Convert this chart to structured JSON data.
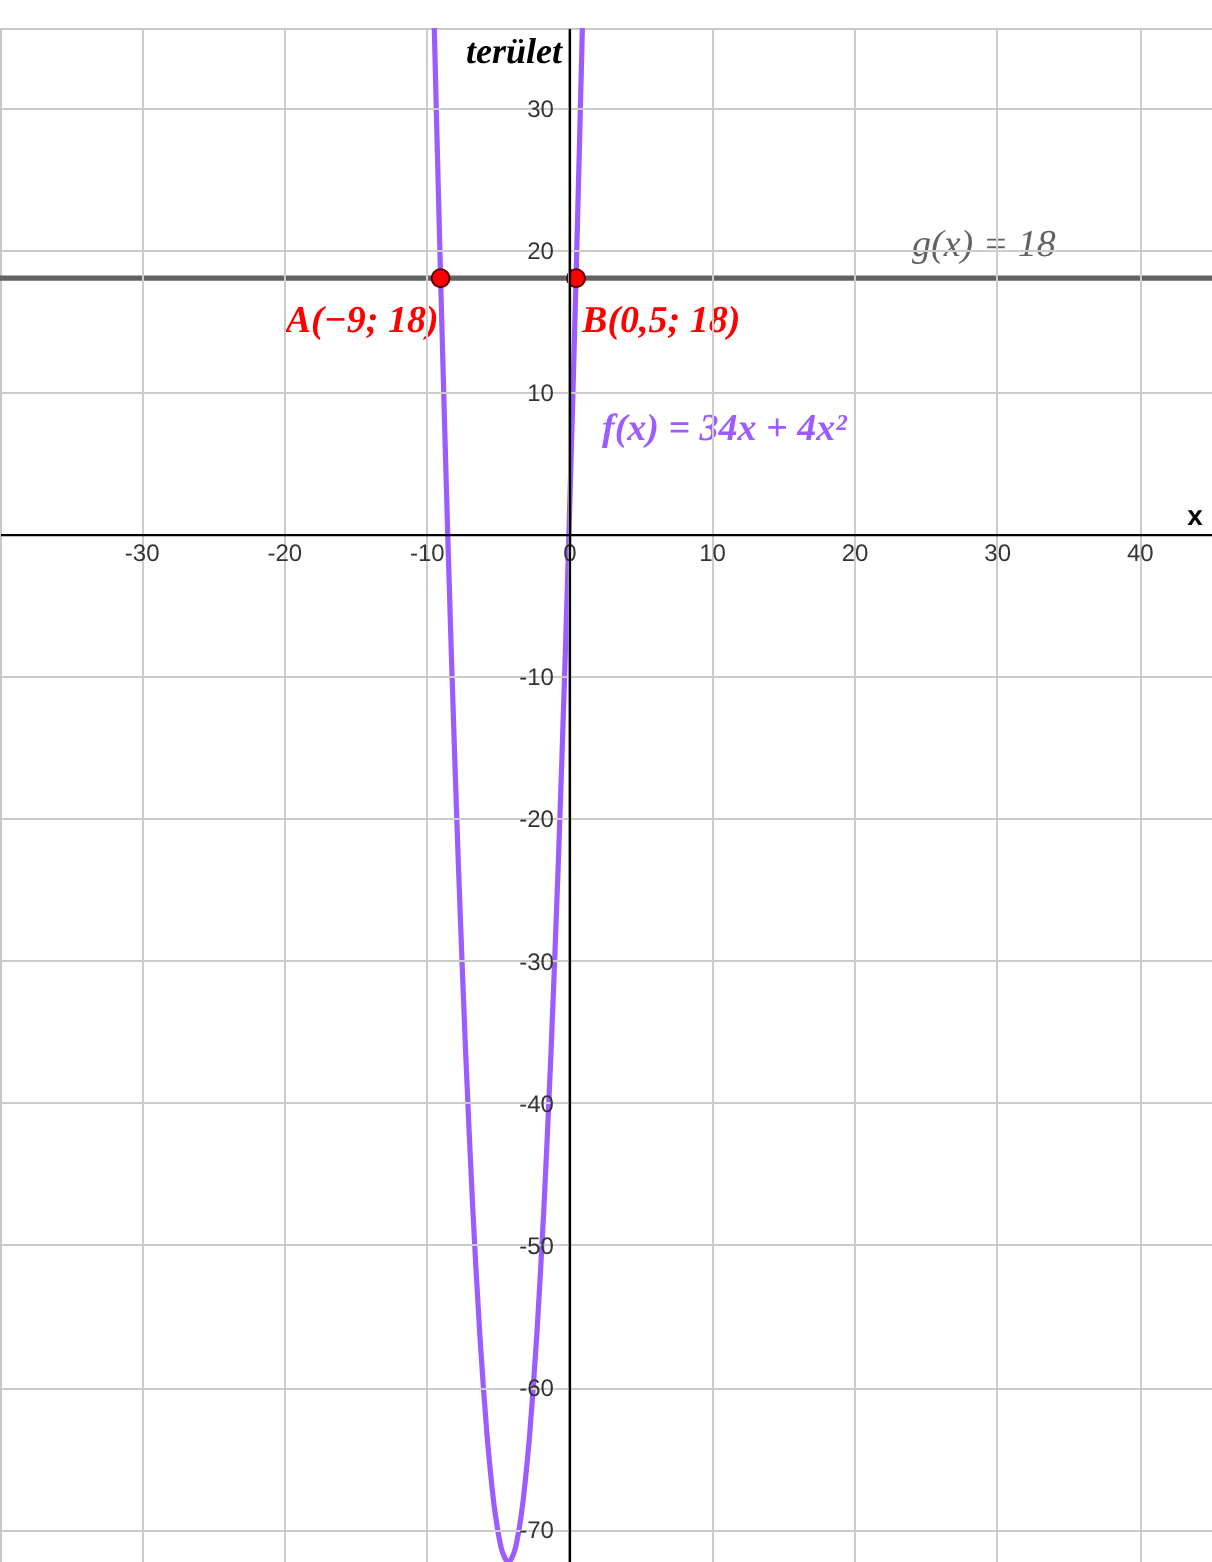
{
  "chart_data": {
    "type": "line",
    "xlabel": "x",
    "ylabel": "terület",
    "xlim": [
      -39.9,
      45.1
    ],
    "ylim": [
      -72.3,
      35.6
    ],
    "xticks": [
      -30,
      -20,
      -10,
      0,
      10,
      20,
      30,
      40
    ],
    "yticks": [
      -70,
      -60,
      -50,
      -40,
      -30,
      -20,
      -10,
      10,
      20,
      30
    ],
    "grid": true,
    "series": [
      {
        "name": "f(x) = 34x + 4x²",
        "color": "#9c5cff",
        "x": [
          -9.44,
          -9.25,
          -9,
          -8.75,
          -8.5,
          -8.25,
          -8,
          -7.75,
          -7.5,
          -7.25,
          -7,
          -6.75,
          -6.5,
          -6.25,
          -6,
          -5.75,
          -5.5,
          -5.25,
          -5,
          -4.75,
          -4.5,
          -4.25,
          -4,
          -3.75,
          -3.5,
          -3.25,
          -3,
          -2.75,
          -2.5,
          -2.25,
          -2,
          -1.75,
          -1.5,
          -1.25,
          -1,
          -0.75,
          -0.5,
          -0.25,
          0,
          0.25,
          0.5,
          0.75,
          0.94
        ],
        "values": [
          35.5,
          27.8,
          18,
          8.8,
          0,
          -8.3,
          -16,
          -23.3,
          -30,
          -36.3,
          -42,
          -47.3,
          -52,
          -56.3,
          -60,
          -63.3,
          -66,
          -68.3,
          -70,
          -71.3,
          -72,
          -72.3,
          -72,
          -71.3,
          -70,
          -68.3,
          -66,
          -63.3,
          -60,
          -56.3,
          -52,
          -47.3,
          -42,
          -36.3,
          -30,
          -23.3,
          -16,
          -8.3,
          0,
          8.8,
          18,
          27.8,
          35.5
        ]
      },
      {
        "type": "scatter",
        "color": "#ff0000",
        "marker": "circle",
        "x": [
          -9,
          0.5
        ],
        "values": [
          18,
          18
        ]
      }
    ],
    "ref_lines": [
      {
        "axis": "y",
        "value": 18,
        "label": "g(x) = 18",
        "color": "#626262"
      }
    ],
    "annotations": [
      {
        "text": "A(−9; 18)",
        "x": -9,
        "y": 18
      },
      {
        "text": "B(0,5; 18)",
        "x": 0.5,
        "y": 18
      }
    ]
  }
}
